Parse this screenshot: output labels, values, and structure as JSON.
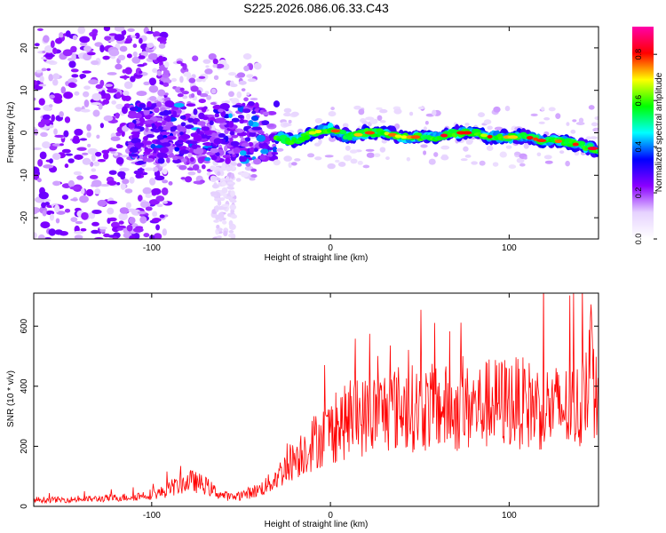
{
  "title": "S225.2026.086.06.33.C43",
  "chart_data": [
    {
      "type": "heatmap",
      "title": "S225.2026.086.06.33.C43",
      "xlabel": "Height of straight line (km)",
      "ylabel": "Frequency (Hz)",
      "xlim": [
        -166,
        150
      ],
      "ylim": [
        -25,
        25
      ],
      "xticks": [
        -100,
        0,
        100
      ],
      "xtick_labels": [
        "-100",
        "0",
        "100"
      ],
      "yticks": [
        -20,
        -10,
        0,
        10,
        20
      ],
      "ytick_labels": [
        "-20",
        "-10",
        "0",
        "10",
        "20"
      ],
      "ridge": {
        "x": [
          -30,
          -20,
          -10,
          0,
          10,
          20,
          30,
          40,
          50,
          60,
          70,
          80,
          90,
          100,
          110,
          120,
          130,
          140,
          150
        ],
        "y": [
          -1,
          -2,
          0,
          1,
          -1,
          0,
          0,
          -1,
          -1,
          -1,
          0,
          0,
          -1,
          -1,
          -1,
          -2,
          -2,
          -3,
          -4
        ]
      },
      "colorbar": {
        "label": "Normalized spectral amplitude",
        "ticks": [
          0.0,
          0.2,
          0.4,
          0.6,
          0.8
        ],
        "tick_labels": [
          "0.0",
          "0.2",
          "0.4",
          "0.6",
          "0.8"
        ],
        "range": [
          0,
          0.92
        ],
        "colors": [
          "#ffffff",
          "#e6d2ff",
          "#8a00ff",
          "#0000ff",
          "#00ffff",
          "#00ff00",
          "#ffff00",
          "#ff0000",
          "#ff00aa"
        ]
      }
    },
    {
      "type": "line",
      "xlabel": "Height of straight line (km)",
      "ylabel": "SNR (10 * v/v)",
      "xlim": [
        -166,
        150
      ],
      "ylim": [
        0,
        710
      ],
      "xticks": [
        -100,
        0,
        100
      ],
      "xtick_labels": [
        "-100",
        "0",
        "100"
      ],
      "yticks": [
        0,
        200,
        400,
        600
      ],
      "ytick_labels": [
        "0",
        "200",
        "400",
        "600"
      ],
      "series": [
        {
          "name": "SNR",
          "color": "#ff0000",
          "x": [
            -166,
            -150,
            -130,
            -110,
            -95,
            -85,
            -78,
            -70,
            -62,
            -55,
            -48,
            -40,
            -33,
            -28,
            -22,
            -15,
            -8,
            0,
            10,
            20,
            30,
            40,
            50,
            60,
            70,
            80,
            90,
            100,
            110,
            120,
            130,
            140,
            145,
            150
          ],
          "y": [
            22,
            22,
            25,
            32,
            45,
            70,
            85,
            70,
            40,
            30,
            40,
            55,
            80,
            110,
            150,
            185,
            220,
            250,
            285,
            300,
            320,
            330,
            325,
            330,
            320,
            330,
            340,
            350,
            340,
            330,
            325,
            330,
            500,
            300
          ]
        }
      ]
    }
  ]
}
